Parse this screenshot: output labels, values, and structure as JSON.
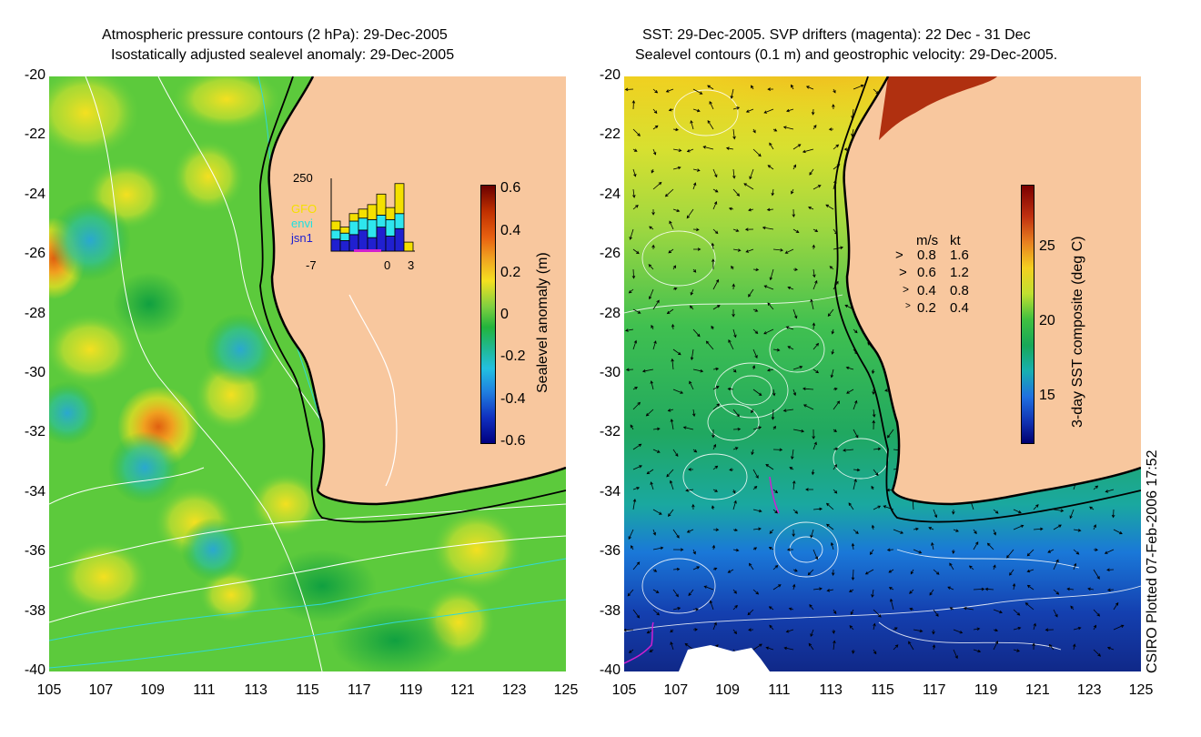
{
  "left_panel": {
    "title_line1": "Atmospheric pressure contours (2 hPa): 29-Dec-2005",
    "title_line2": "Isostatically adjusted sealevel anomaly: 29-Dec-2005",
    "colorbar_label": "Sealevel anomaly (m)",
    "colorbar_ticks": [
      "0.6",
      "0.4",
      "0.2",
      "0",
      "-0.2",
      "-0.4",
      "-0.6"
    ],
    "inset": {
      "y_tick": "250",
      "x_ticks": [
        "-7",
        "0",
        "3"
      ],
      "legend": [
        "GFO",
        "envi",
        "jsn1"
      ],
      "legend_colors": [
        "#f4e000",
        "#2ee6ee",
        "#2020d0"
      ],
      "bars": [
        {
          "day": -7,
          "jsn1": 40,
          "envi": 30,
          "gfo": 30
        },
        {
          "day": -6,
          "jsn1": 35,
          "envi": 25,
          "gfo": 20
        },
        {
          "day": -5,
          "jsn1": 55,
          "envi": 45,
          "gfo": 25
        },
        {
          "day": -4,
          "jsn1": 70,
          "envi": 40,
          "gfo": 30
        },
        {
          "day": -3,
          "jsn1": 45,
          "envi": 60,
          "gfo": 50
        },
        {
          "day": -2,
          "jsn1": 80,
          "envi": 40,
          "gfo": 70
        },
        {
          "day": -1,
          "jsn1": 50,
          "envi": 55,
          "gfo": 40
        },
        {
          "day": 0,
          "jsn1": 75,
          "envi": 50,
          "gfo": 100
        },
        {
          "day": 1,
          "jsn1": 0,
          "envi": 0,
          "gfo": 30
        }
      ]
    }
  },
  "right_panel": {
    "title_line1": "SST: 29-Dec-2005. SVP drifters (magenta): 22 Dec - 31 Dec",
    "title_line2": "Sealevel contours (0.1 m) and geostrophic velocity: 29-Dec-2005.",
    "colorbar_label": "3-day SST composite (deg C)",
    "colorbar_ticks": [
      "25",
      "20",
      "15"
    ],
    "speed_legend": {
      "header_ms": "m/s",
      "header_kt": "kt",
      "rows": [
        {
          "ms": "0.8",
          "kt": "1.6"
        },
        {
          "ms": "0.6",
          "kt": "1.2"
        },
        {
          "ms": "0.4",
          "kt": "0.8"
        },
        {
          "ms": "0.2",
          "kt": "0.4"
        }
      ]
    }
  },
  "axes": {
    "lat_ticks": [
      "-20",
      "-22",
      "-24",
      "-26",
      "-28",
      "-30",
      "-32",
      "-34",
      "-36",
      "-38",
      "-40"
    ],
    "lon_ticks": [
      "105",
      "107",
      "109",
      "111",
      "113",
      "115",
      "117",
      "119",
      "121",
      "123",
      "125"
    ]
  },
  "credit": "CSIRO Plotted 07-Feb-2006 17:52",
  "colors": {
    "land": "#f8c79e",
    "coast": "#000000",
    "sla_positive": "#f0e020",
    "sla_zero": "#22b43c",
    "sla_negative": "#1e8cd8",
    "drifter": "#d020d0"
  }
}
